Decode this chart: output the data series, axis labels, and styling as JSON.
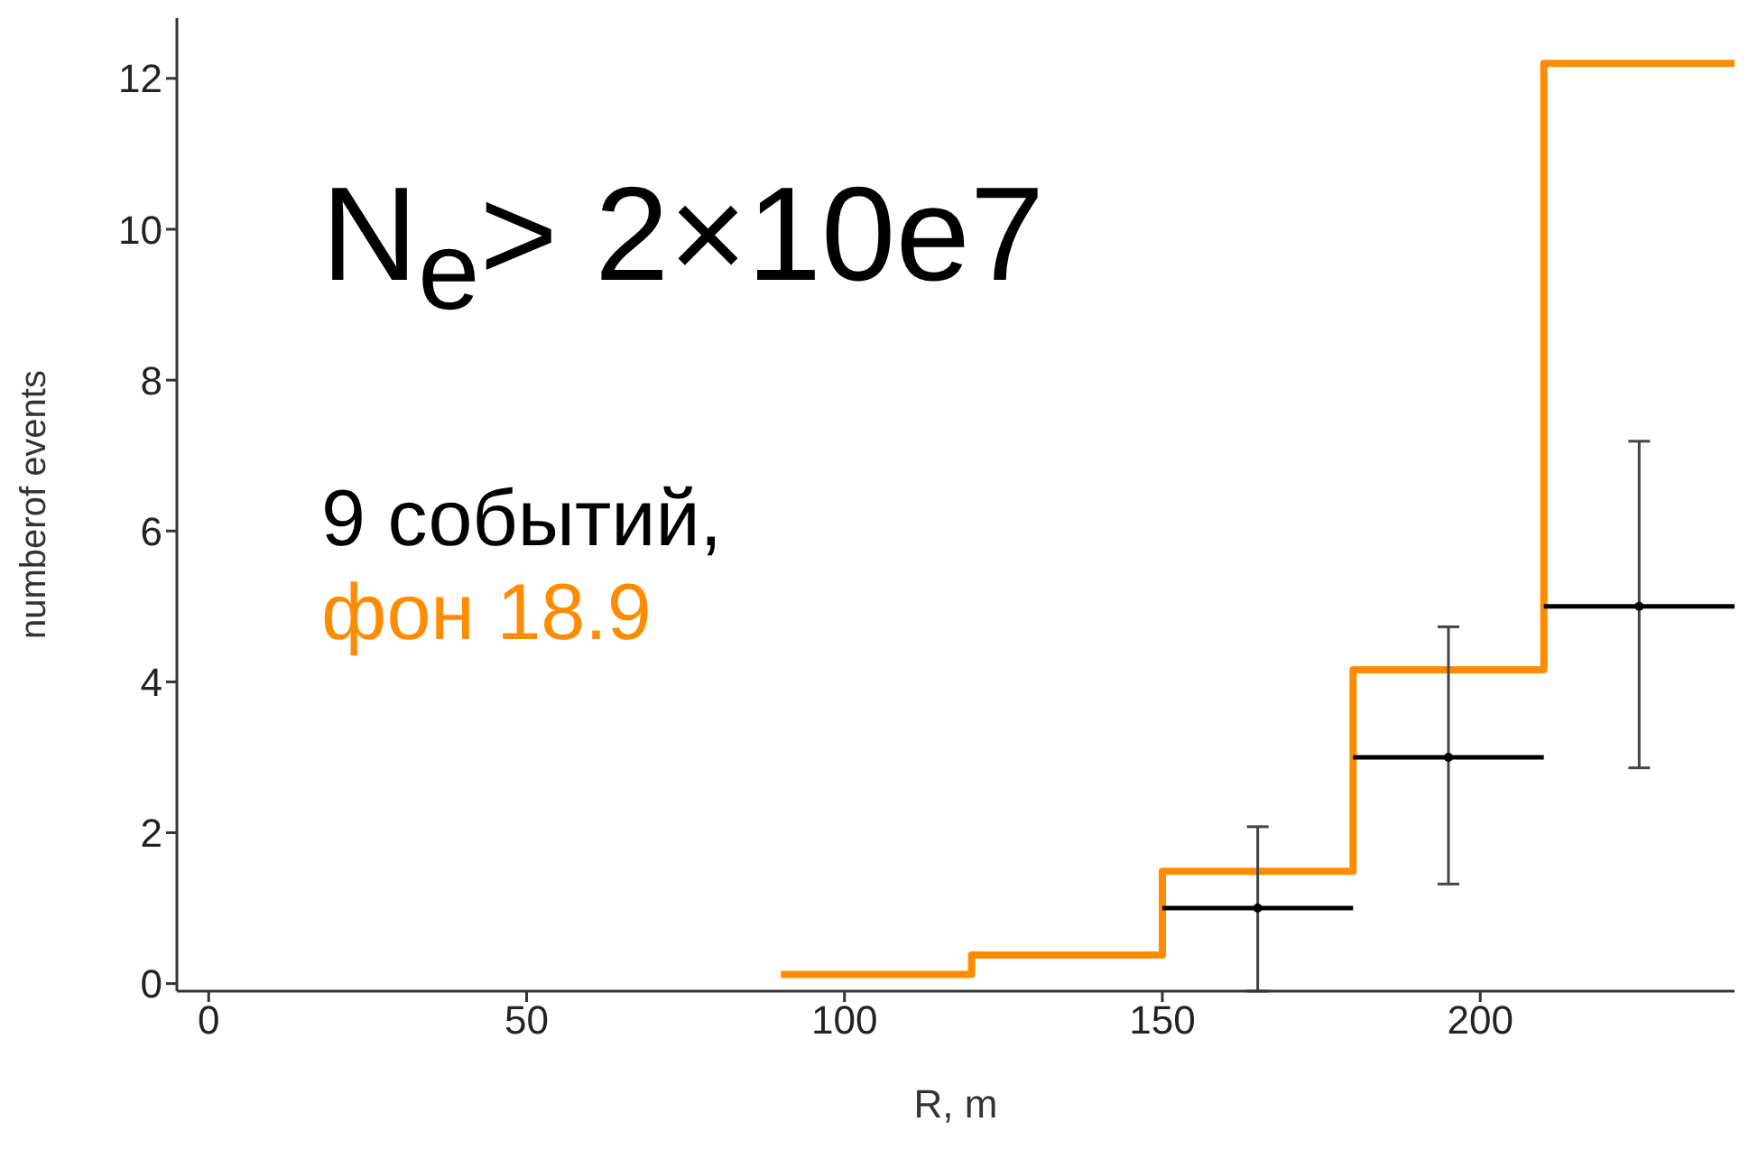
{
  "chart_data": {
    "type": "step",
    "xlabel": "R, m",
    "ylabel": "numberof events",
    "annotations": [
      "N$_{e}$> 2×10e7",
      "9 событий,",
      "фон 18.9"
    ],
    "xlim": [
      -5,
      240
    ],
    "xticks": [
      0,
      50,
      100,
      150,
      200
    ],
    "ylim": [
      -0.1,
      12.8
    ],
    "yticks": [
      0,
      2,
      4,
      6,
      8,
      10,
      12
    ],
    "grid": false,
    "series": [
      {
        "color": "#ff8c00",
        "x": [
          90,
          120,
          150,
          180,
          210,
          240
        ],
        "values": [
          0.12,
          0.38,
          1.49,
          4.16,
          12.2,
          12.2
        ]
      },
      {
        "type": "scatter",
        "color": "#000000",
        "x": [
          165,
          195,
          225
        ],
        "values": [
          1,
          3,
          5
        ],
        "xerrors": [
          15,
          15,
          15
        ],
        "errors": [
          [
            -0.1,
            2.08
          ],
          [
            1.32,
            4.73
          ],
          [
            2.86,
            7.19
          ]
        ]
      }
    ]
  }
}
